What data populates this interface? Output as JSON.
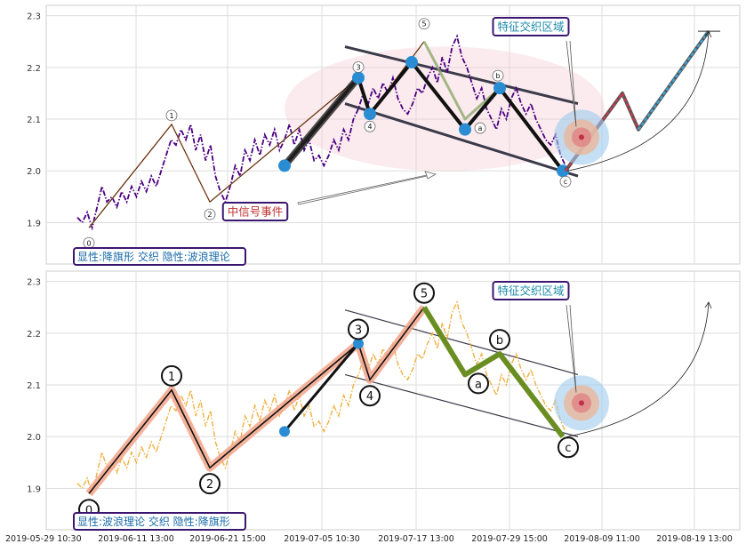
{
  "chart_data": [
    {
      "type": "line",
      "title": "",
      "xlabel": "",
      "ylabel": "",
      "ylim": [
        1.82,
        2.32
      ],
      "yticks": [
        "1.9",
        "2.0",
        "2.1",
        "2.2",
        "2.3"
      ],
      "grid": true,
      "price_color": "#4b0082",
      "series": [
        {
          "style": "dash-dot",
          "values": [
            1.91,
            1.9,
            1.92,
            1.89,
            1.93,
            1.97,
            1.94,
            1.95,
            1.93,
            1.96,
            1.94,
            1.97,
            1.95,
            1.98,
            1.96,
            1.99,
            1.97,
            2.0,
            2.03,
            2.06,
            2.05,
            2.08,
            2.06,
            2.09,
            2.04,
            2.07,
            2.02,
            2.05,
            1.99,
            1.96,
            1.94,
            1.97,
            2.01,
            1.99,
            2.04,
            2.02,
            2.06,
            2.03,
            2.07,
            2.05,
            2.08,
            2.04,
            2.06,
            2.09,
            2.05,
            2.08,
            2.04,
            2.06,
            2.02,
            2.03,
            2.01,
            2.03,
            2.06,
            2.04,
            2.08,
            2.06,
            2.1,
            2.12,
            2.15,
            2.13,
            2.16,
            2.14,
            2.17,
            2.15,
            2.18,
            2.14,
            2.12,
            2.11,
            2.13,
            2.16,
            2.15,
            2.18,
            2.2,
            2.17,
            2.22,
            2.19,
            2.24,
            2.26,
            2.22,
            2.2,
            2.17,
            2.14,
            2.16,
            2.12,
            2.1,
            2.08,
            2.12,
            2.1,
            2.14,
            2.16,
            2.13,
            2.11,
            2.13,
            2.1,
            2.08,
            2.06,
            2.05,
            2.07,
            2.03,
            2.01
          ]
        }
      ],
      "wave_points": [
        {
          "label": "0",
          "value": 1.89
        },
        {
          "label": "1",
          "value": 2.09
        },
        {
          "label": "2",
          "value": 1.94
        },
        {
          "label": "3",
          "value": 2.18
        },
        {
          "label": "4",
          "value": 2.11
        },
        {
          "label": "5",
          "value": 2.25
        },
        {
          "label": "a",
          "value": 2.1
        },
        {
          "label": "b",
          "value": 2.16
        },
        {
          "label": "c",
          "value": 2.0
        }
      ],
      "projection": [
        2.0,
        2.15,
        2.08,
        2.27
      ],
      "annotations": {
        "feature_zone": "特征交织区域",
        "signal_event": "中信号事件",
        "pattern_label": "显性:降旗形 交织 隐性:波浪理论"
      }
    },
    {
      "type": "line",
      "title": "",
      "xlabel": "",
      "ylabel": "",
      "ylim": [
        1.82,
        2.32
      ],
      "yticks": [
        "1.9",
        "2.0",
        "2.1",
        "2.2",
        "2.3"
      ],
      "grid": true,
      "price_color": "#f0b040",
      "series": [
        {
          "style": "dash-dot",
          "values": [
            1.91,
            1.9,
            1.92,
            1.89,
            1.93,
            1.97,
            1.94,
            1.95,
            1.93,
            1.96,
            1.94,
            1.97,
            1.95,
            1.98,
            1.96,
            1.99,
            1.97,
            2.0,
            2.03,
            2.06,
            2.05,
            2.08,
            2.06,
            2.09,
            2.04,
            2.07,
            2.02,
            2.05,
            1.99,
            1.96,
            1.94,
            1.97,
            2.01,
            1.99,
            2.04,
            2.02,
            2.06,
            2.03,
            2.07,
            2.05,
            2.08,
            2.04,
            2.06,
            2.09,
            2.05,
            2.08,
            2.04,
            2.06,
            2.02,
            2.03,
            2.01,
            2.03,
            2.06,
            2.04,
            2.08,
            2.06,
            2.1,
            2.12,
            2.15,
            2.13,
            2.16,
            2.14,
            2.17,
            2.15,
            2.18,
            2.14,
            2.12,
            2.11,
            2.13,
            2.16,
            2.15,
            2.18,
            2.2,
            2.17,
            2.22,
            2.19,
            2.24,
            2.26,
            2.22,
            2.2,
            2.17,
            2.14,
            2.16,
            2.12,
            2.1,
            2.08,
            2.12,
            2.1,
            2.14,
            2.16,
            2.13,
            2.11,
            2.13,
            2.1,
            2.08,
            2.06,
            2.05,
            2.07,
            2.03,
            2.01
          ]
        }
      ],
      "wave_points": [
        {
          "label": "0",
          "value": 1.89
        },
        {
          "label": "1",
          "value": 2.09
        },
        {
          "label": "2",
          "value": 1.94
        },
        {
          "label": "3",
          "value": 2.18
        },
        {
          "label": "4",
          "value": 2.11
        },
        {
          "label": "5",
          "value": 2.25
        },
        {
          "label": "a",
          "value": 2.12
        },
        {
          "label": "b",
          "value": 2.16
        },
        {
          "label": "c",
          "value": 2.0
        }
      ],
      "annotations": {
        "feature_zone": "特征交织区域",
        "pattern_label": "显性:波浪理论 交织 隐性:降旗形"
      }
    }
  ],
  "x_axis": {
    "ticks": [
      "2019-05-29 10:30",
      "2019-06-11 13:00",
      "2019-06-21 15:00",
      "2019-07-05 10:30",
      "2019-07-17 13:00",
      "2019-07-29 15:00",
      "2019-08-09 11:00",
      "2019-08-19 13:00"
    ]
  }
}
